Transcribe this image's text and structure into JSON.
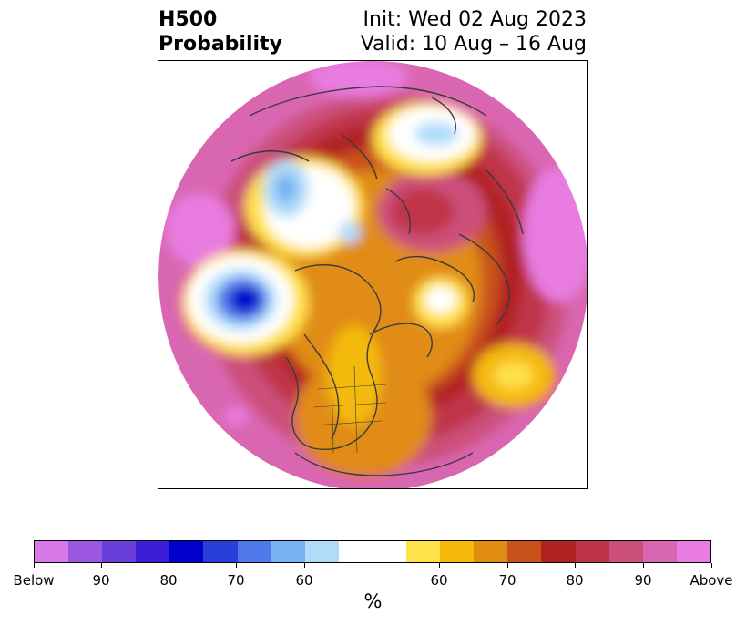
{
  "title": {
    "left_line1": "H500",
    "left_line2": "Probability",
    "right_line1": "Init: Wed 02 Aug 2023",
    "right_line2": "Valid: 10 Aug – 16 Aug"
  },
  "colorbar": {
    "units": "%",
    "colors": [
      "#d978e8",
      "#9c58e0",
      "#6a3ed9",
      "#3a1fd6",
      "#0000cc",
      "#2a3fd9",
      "#4f78e8",
      "#78b2f2",
      "#b0dcfa",
      "#ffffff",
      "#ffe14a",
      "#f4b90a",
      "#e08c12",
      "#c8531a",
      "#b22222",
      "#c0344a",
      "#cc4f7a",
      "#d966b0",
      "#e87ce0"
    ],
    "ticks": [
      "Below",
      "90",
      "80",
      "70",
      "60",
      "60",
      "70",
      "80",
      "90",
      "Above"
    ]
  },
  "map": {
    "outline_color": "#3a3a3a",
    "field_colors": {
      "above_90": "#e87ce0",
      "above_85": "#d966b0",
      "above_80": "#cc4f7a",
      "above_75": "#c0344a",
      "above_70": "#b22222",
      "above_65": "#c8531a",
      "above_60": "#e08c12",
      "above_55": "#f4b90a",
      "above_50": "#ffe14a",
      "neutral": "#ffffff",
      "below_50": "#b0dcfa",
      "below_60": "#78b2f2",
      "below_70": "#4f78e8",
      "below_80": "#2a3fd9",
      "below_90": "#0000cc"
    }
  }
}
